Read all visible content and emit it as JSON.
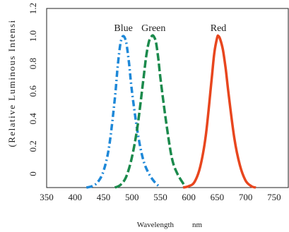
{
  "chart_data": {
    "type": "line",
    "xlabel": "Wavelength",
    "xunit": "nm",
    "ylabel": "(Relative Luminous Intensi",
    "xlim": [
      350,
      775
    ],
    "ylim": [
      -0.1,
      1.2
    ],
    "xticks": [
      "350",
      "400",
      "450",
      "500",
      "550",
      "600",
      "650",
      "700",
      "750"
    ],
    "yticks": [
      "0",
      "0.2",
      "0.4",
      "0.6",
      "0.8",
      "1.0",
      "1.2"
    ],
    "series": [
      {
        "name": "Blue",
        "color": "#1e88d8",
        "style": "dashdot",
        "peak": 485,
        "x": [
          420,
          430,
          440,
          450,
          460,
          470,
          475,
          480,
          485,
          490,
          495,
          500,
          510,
          520,
          530,
          540,
          550
        ],
        "y": [
          -0.1,
          -0.09,
          -0.06,
          0.02,
          0.2,
          0.55,
          0.78,
          0.95,
          1.0,
          0.95,
          0.8,
          0.6,
          0.3,
          0.1,
          0.0,
          -0.06,
          -0.1
        ]
      },
      {
        "name": "Green",
        "color": "#1b8a4c",
        "style": "dashed",
        "peak": 538,
        "x": [
          470,
          480,
          490,
          500,
          510,
          520,
          525,
          530,
          535,
          538,
          542,
          546,
          550,
          560,
          570,
          580,
          595
        ],
        "y": [
          -0.1,
          -0.08,
          -0.02,
          0.12,
          0.35,
          0.68,
          0.85,
          0.96,
          1.0,
          1.0,
          0.96,
          0.85,
          0.7,
          0.38,
          0.12,
          0.0,
          -0.1
        ]
      },
      {
        "name": "Red",
        "color": "#e8461e",
        "style": "solid",
        "peak": 652,
        "x": [
          590,
          600,
          610,
          620,
          630,
          640,
          645,
          650,
          652,
          655,
          660,
          665,
          670,
          680,
          690,
          700,
          710,
          718
        ],
        "y": [
          -0.1,
          -0.09,
          -0.06,
          0.05,
          0.28,
          0.68,
          0.88,
          0.99,
          1.0,
          0.98,
          0.9,
          0.76,
          0.58,
          0.26,
          0.06,
          -0.05,
          -0.09,
          -0.1
        ]
      }
    ],
    "grid": false,
    "legend": "inline labels above peaks"
  }
}
